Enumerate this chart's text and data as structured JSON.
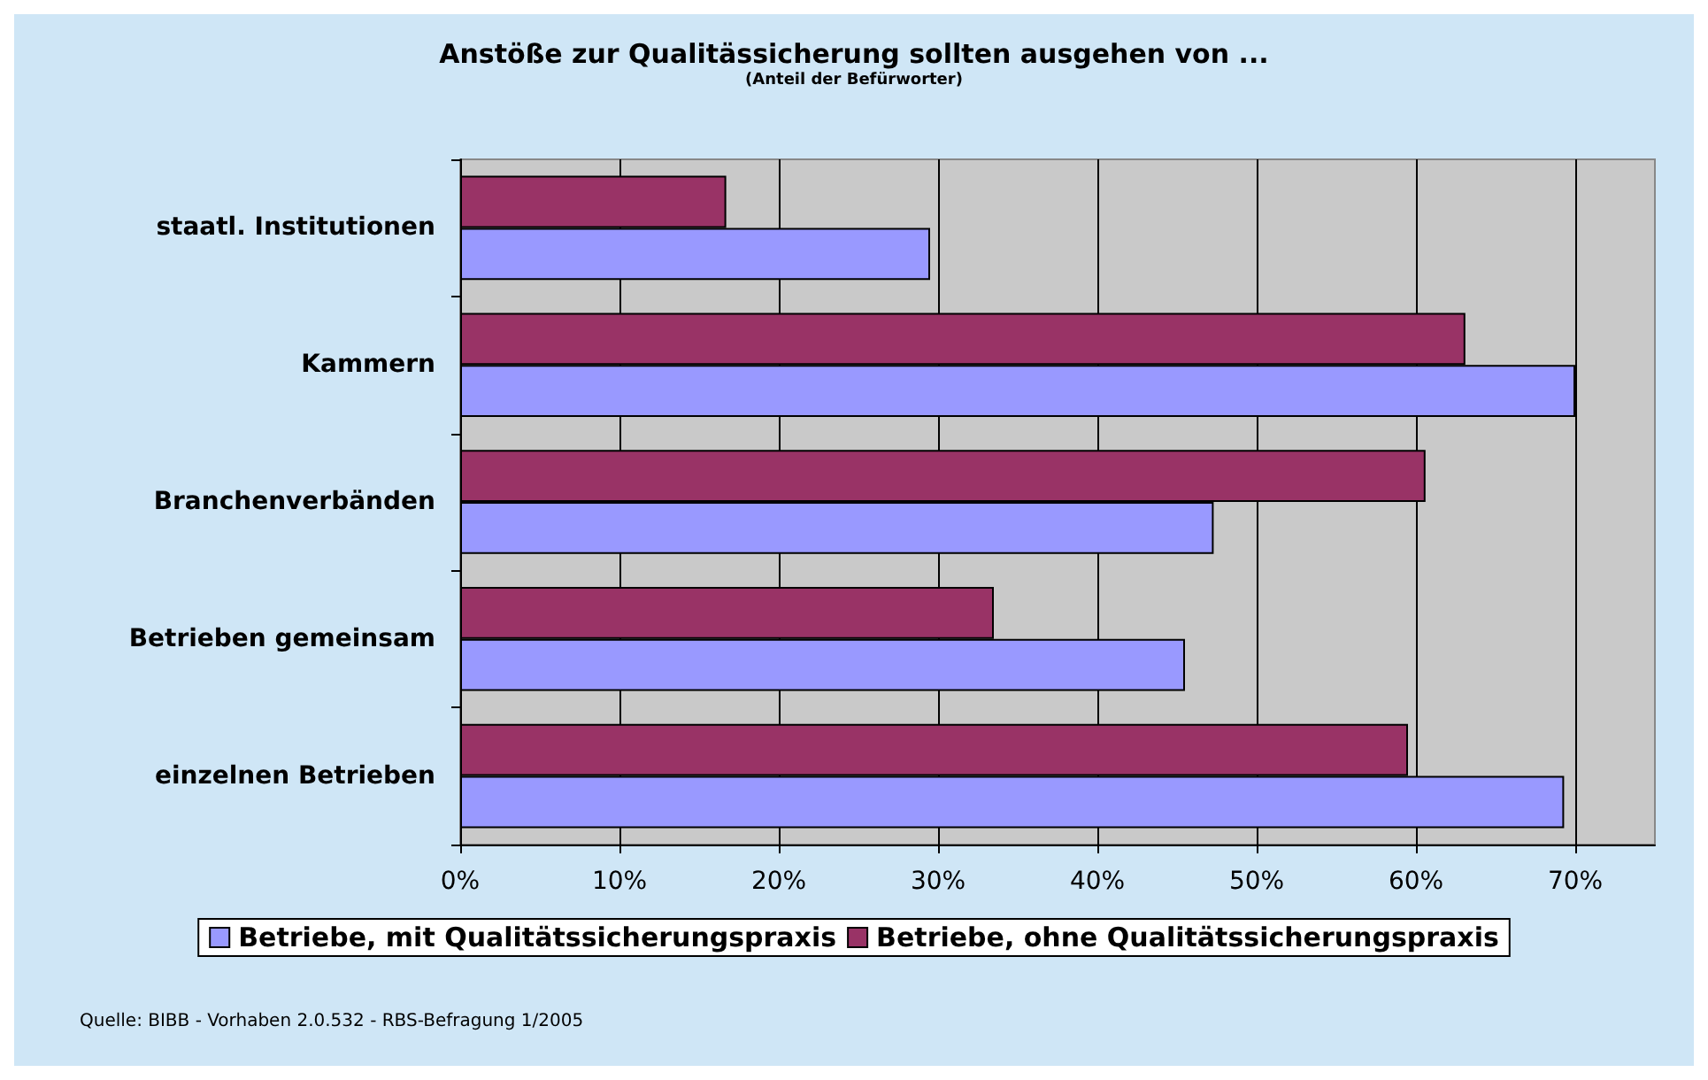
{
  "chart_data": {
    "type": "bar",
    "orientation": "horizontal",
    "title": "Anstöße zur Qualitässicherung sollten ausgehen von ...",
    "subtitle": "(Anteil der Befürworter)",
    "categories": [
      "staatl. Institutionen",
      "Kammern",
      "Branchenverbänden",
      "Betrieben gemeinsam",
      "einzelnen Betrieben"
    ],
    "series": [
      {
        "name": "Betriebe, mit Qualitätssicherungspraxis",
        "color": "#9999ff",
        "values": [
          29.5,
          70.0,
          47.3,
          45.5,
          69.3
        ]
      },
      {
        "name": "Betriebe, ohne Qualitätssicherungspraxis",
        "color": "#993366",
        "values": [
          16.7,
          63.1,
          60.6,
          33.5,
          59.5
        ]
      }
    ],
    "xlim": [
      0,
      75
    ],
    "xticks": [
      {
        "value": 0,
        "label": "0%"
      },
      {
        "value": 10,
        "label": "10%"
      },
      {
        "value": 20,
        "label": "20%"
      },
      {
        "value": 30,
        "label": "30%"
      },
      {
        "value": 40,
        "label": "40%"
      },
      {
        "value": 50,
        "label": "50%"
      },
      {
        "value": 60,
        "label": "60%"
      },
      {
        "value": 70,
        "label": "70%"
      }
    ],
    "grid": "x",
    "legend": "bottom",
    "annotations": [
      "Quelle: BIBB - Vorhaben 2.0.532 - RBS-Befragung 1/2005"
    ]
  }
}
